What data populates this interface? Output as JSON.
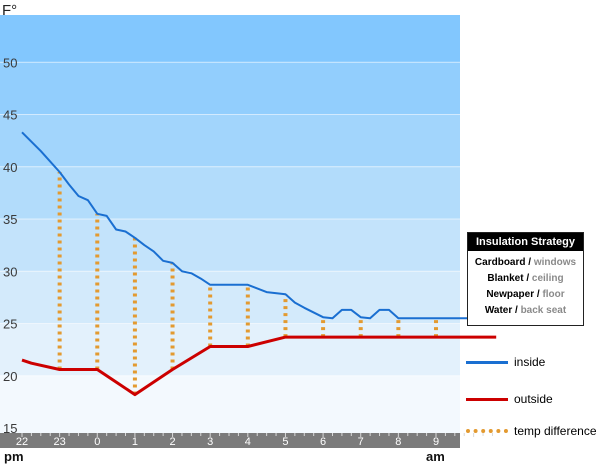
{
  "chart_data": {
    "type": "line",
    "y_unit_label": "F°",
    "ylim": [
      15,
      55
    ],
    "y_ticks": [
      15,
      20,
      25,
      30,
      35,
      40,
      45,
      50
    ],
    "x_tick_labels": [
      "22",
      "23",
      "0",
      "1",
      "2",
      "3",
      "4",
      "5",
      "6",
      "7",
      "8",
      "9"
    ],
    "x_period_labels": {
      "start": "pm",
      "end": "am"
    },
    "grid": false,
    "series": [
      {
        "name": "inside",
        "color": "#1a6fd1",
        "points": [
          [
            22,
            43.3
          ],
          [
            22.5,
            41.5
          ],
          [
            23,
            39.5
          ],
          [
            23.25,
            38.3
          ],
          [
            23.5,
            37.2
          ],
          [
            23.75,
            36.8
          ],
          [
            24,
            35.5
          ],
          [
            24.25,
            35.3
          ],
          [
            24.5,
            34.0
          ],
          [
            24.75,
            33.8
          ],
          [
            25,
            33.2
          ],
          [
            25.25,
            32.5
          ],
          [
            25.5,
            31.9
          ],
          [
            25.75,
            31.0
          ],
          [
            26,
            30.8
          ],
          [
            26.25,
            30.0
          ],
          [
            26.5,
            29.8
          ],
          [
            26.75,
            29.3
          ],
          [
            27,
            28.7
          ],
          [
            27.5,
            28.7
          ],
          [
            28,
            28.7
          ],
          [
            28.5,
            28.0
          ],
          [
            29,
            27.8
          ],
          [
            29.25,
            27.0
          ],
          [
            29.5,
            26.5
          ],
          [
            30,
            25.6
          ],
          [
            30.25,
            25.5
          ],
          [
            30.5,
            26.3
          ],
          [
            30.75,
            26.3
          ],
          [
            31,
            25.6
          ],
          [
            31.25,
            25.5
          ],
          [
            31.5,
            26.3
          ],
          [
            31.75,
            26.3
          ],
          [
            32,
            25.5
          ],
          [
            32.5,
            25.5
          ],
          [
            33,
            25.5
          ],
          [
            33.5,
            25.5
          ],
          [
            34,
            25.5
          ],
          [
            34.25,
            26.4
          ],
          [
            34.45,
            26.5
          ],
          [
            34.6,
            27.9
          ]
        ]
      },
      {
        "name": "outside",
        "color": "#cc0000",
        "points": [
          [
            22,
            21.5
          ],
          [
            22.25,
            21.2
          ],
          [
            23,
            20.6
          ],
          [
            24,
            20.6
          ],
          [
            25,
            18.2
          ],
          [
            26,
            20.6
          ],
          [
            27,
            22.8
          ],
          [
            28,
            22.8
          ],
          [
            29,
            23.7
          ],
          [
            30,
            23.7
          ],
          [
            31,
            23.7
          ],
          [
            32,
            23.7
          ],
          [
            33,
            23.7
          ],
          [
            34,
            23.7
          ],
          [
            34.6,
            23.7
          ]
        ]
      },
      {
        "name": "temp difference",
        "color": "#e39a30",
        "style": "dotted",
        "segments": [
          {
            "x": 23,
            "from": 20.6,
            "to": 39.5
          },
          {
            "x": 24,
            "from": 20.6,
            "to": 35.5
          },
          {
            "x": 25,
            "from": 18.2,
            "to": 33.2
          },
          {
            "x": 26,
            "from": 20.6,
            "to": 30.8
          },
          {
            "x": 27,
            "from": 22.8,
            "to": 28.7
          },
          {
            "x": 28,
            "from": 22.8,
            "to": 28.7
          },
          {
            "x": 29,
            "from": 23.7,
            "to": 27.8
          },
          {
            "x": 30,
            "from": 23.7,
            "to": 25.6
          },
          {
            "x": 31,
            "from": 23.7,
            "to": 25.6
          },
          {
            "x": 32,
            "from": 23.7,
            "to": 25.5
          },
          {
            "x": 33,
            "from": 23.7,
            "to": 25.5
          }
        ]
      }
    ],
    "legend_placement": "right",
    "background_bands": [
      "#f3f9fe",
      "#e3f1fc",
      "#d3eafb",
      "#c3e3fb",
      "#b2dcfb",
      "#a2d5fc",
      "#92cefd",
      "#82c7fe"
    ]
  },
  "insulation_legend": {
    "title": "Insulation Strategy",
    "rows": [
      {
        "material": "Cardboard",
        "sep": " / ",
        "location": "windows"
      },
      {
        "material": "Blanket",
        "sep": " / ",
        "location": "ceiling"
      },
      {
        "material": "Newpaper",
        "sep": " / ",
        "location": "floor"
      },
      {
        "material": "Water",
        "sep": " / ",
        "location": "back seat"
      }
    ]
  },
  "series_legend": {
    "inside": "inside",
    "outside": "outside",
    "difference": "temp difference"
  },
  "colors": {
    "axis_bar": "#7b7b7b",
    "axis_text": "#ffffff",
    "label_text": "#3a3a3a"
  }
}
